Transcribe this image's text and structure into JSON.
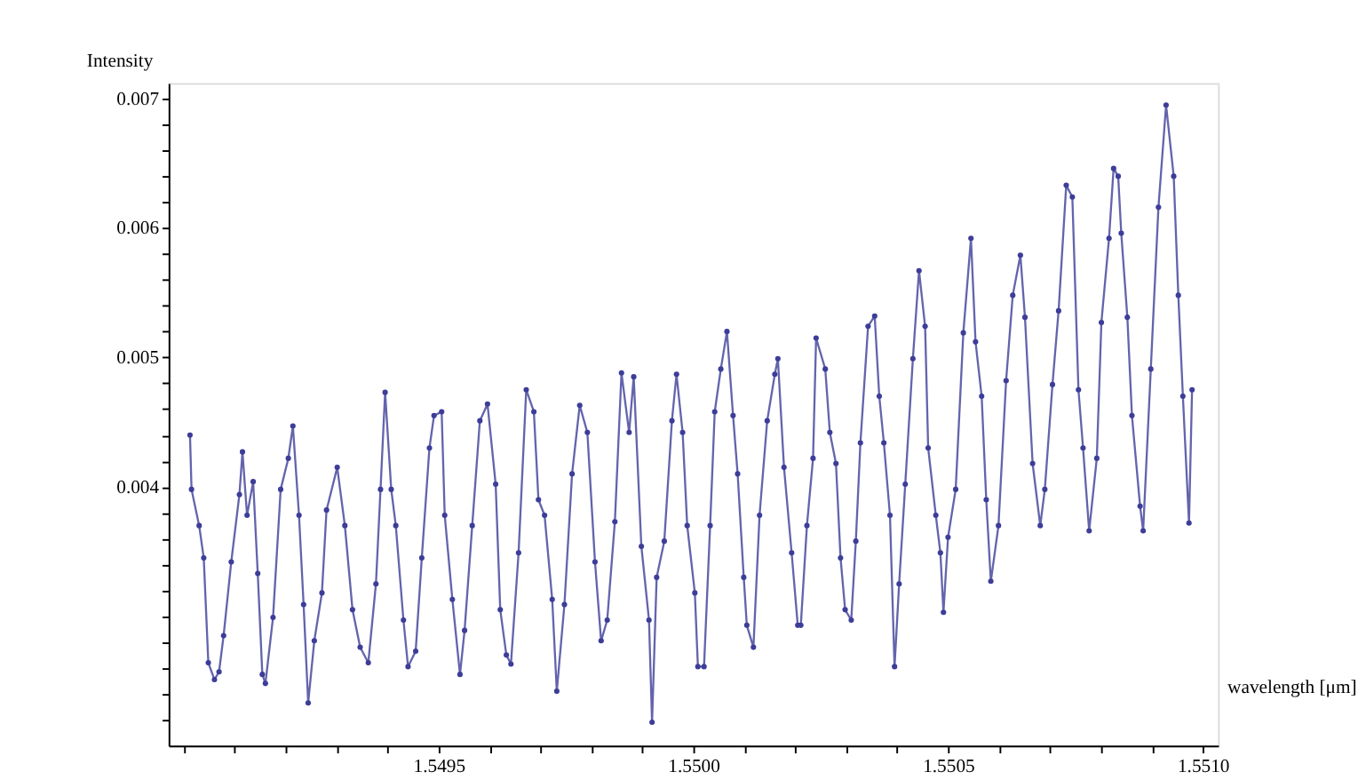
{
  "chart_data": {
    "type": "line",
    "xlabel": "wavelength [μm]",
    "ylabel": "Intensity",
    "xlim": [
      1.54897,
      1.55103
    ],
    "ylim": [
      0.002,
      0.00712
    ],
    "xticks": [
      {
        "value": 1.549,
        "label": null
      },
      {
        "value": 1.5491,
        "label": null
      },
      {
        "value": 1.5492,
        "label": null
      },
      {
        "value": 1.5493,
        "label": null
      },
      {
        "value": 1.5494,
        "label": null
      },
      {
        "value": 1.5495,
        "label": "1.5495"
      },
      {
        "value": 1.5496,
        "label": null
      },
      {
        "value": 1.5497,
        "label": null
      },
      {
        "value": 1.5498,
        "label": null
      },
      {
        "value": 1.5499,
        "label": null
      },
      {
        "value": 1.55,
        "label": "1.5500"
      },
      {
        "value": 1.5501,
        "label": null
      },
      {
        "value": 1.5502,
        "label": null
      },
      {
        "value": 1.5503,
        "label": null
      },
      {
        "value": 1.5504,
        "label": null
      },
      {
        "value": 1.5505,
        "label": "1.5505"
      },
      {
        "value": 1.5506,
        "label": null
      },
      {
        "value": 1.5507,
        "label": null
      },
      {
        "value": 1.5508,
        "label": null
      },
      {
        "value": 1.5509,
        "label": null
      },
      {
        "value": 1.551,
        "label": "1.5510"
      }
    ],
    "yticks": [
      {
        "value": 0.0022,
        "label": null
      },
      {
        "value": 0.0024,
        "label": null
      },
      {
        "value": 0.0026,
        "label": null
      },
      {
        "value": 0.0028,
        "label": null
      },
      {
        "value": 0.003,
        "label": null
      },
      {
        "value": 0.0032,
        "label": null
      },
      {
        "value": 0.0034,
        "label": null
      },
      {
        "value": 0.0036,
        "label": null
      },
      {
        "value": 0.0038,
        "label": null
      },
      0.004,
      {
        "value": 0.0042,
        "label": null
      },
      {
        "value": 0.0044,
        "label": null
      },
      {
        "value": 0.0046,
        "label": null
      },
      {
        "value": 0.0048,
        "label": null
      },
      0.005,
      {
        "value": 0.0052,
        "label": null
      },
      {
        "value": 0.0054,
        "label": null
      },
      {
        "value": 0.0056,
        "label": null
      },
      {
        "value": 0.0058,
        "label": null
      },
      0.006,
      {
        "value": 0.0062,
        "label": null
      },
      {
        "value": 0.0064,
        "label": null
      },
      {
        "value": 0.0066,
        "label": null
      },
      {
        "value": 0.0068,
        "label": null
      },
      0.007
    ],
    "grid": false,
    "marker": "circle",
    "line_style": "solid",
    "series": [
      {
        "color": "#3d3d99",
        "x": [
          1.549012,
          1.549015,
          1.54903,
          1.549039,
          1.549048,
          1.54906,
          1.549069,
          1.549078,
          1.549093,
          1.549109,
          1.549115,
          1.549124,
          1.549136,
          1.549145,
          1.549154,
          1.54916,
          1.549175,
          1.54919,
          1.549205,
          1.549214,
          1.549226,
          1.549235,
          1.549244,
          1.549256,
          1.549271,
          1.54928,
          1.549301,
          1.549316,
          1.549331,
          1.549346,
          1.549362,
          1.549377,
          1.549386,
          1.549395,
          1.549407,
          1.549416,
          1.549431,
          1.54944,
          1.549455,
          1.549467,
          1.549482,
          1.549491,
          1.549506,
          1.549512,
          1.549527,
          1.549542,
          1.549551,
          1.549566,
          1.549581,
          1.549596,
          1.549612,
          1.549621,
          1.549633,
          1.549642,
          1.549657,
          1.549672,
          1.549687,
          1.549696,
          1.549708,
          1.549723,
          1.549732,
          1.549747,
          1.549762,
          1.549777,
          1.549792,
          1.549807,
          1.549819,
          1.549831,
          1.549846,
          1.549859,
          1.549874,
          1.549883,
          1.549898,
          1.549913,
          1.549919,
          1.549928,
          1.549943,
          1.549958,
          1.549967,
          1.549979,
          1.549988,
          1.550003,
          1.550009,
          1.550021,
          1.550033,
          1.550042,
          1.550054,
          1.550066,
          1.550078,
          1.550087,
          1.550099,
          1.550105,
          1.550118,
          1.55013,
          1.550145,
          1.55016,
          1.550166,
          1.550178,
          1.550193,
          1.550205,
          1.550211,
          1.550223,
          1.550235,
          1.550241,
          1.550259,
          1.550268,
          1.55028,
          1.550289,
          1.550298,
          1.55031,
          1.550319,
          1.550328,
          1.550343,
          1.550356,
          1.550365,
          1.550374,
          1.550386,
          1.550395,
          1.550404,
          1.550416,
          1.550431,
          1.550443,
          1.550455,
          1.550461,
          1.550476,
          1.550485,
          1.550491,
          1.5505,
          1.550515,
          1.55053,
          1.550545,
          1.550554,
          1.550566,
          1.550575,
          1.550584,
          1.550599,
          1.550614,
          1.550627,
          1.550642,
          1.550651,
          1.550666,
          1.550681,
          1.55069,
          1.550705,
          1.550717,
          1.550732,
          1.550744,
          1.550756,
          1.550765,
          1.550777,
          1.550792,
          1.550801,
          1.550816,
          1.550825,
          1.550834,
          1.55084,
          1.550852,
          1.550861,
          1.550877,
          1.550883,
          1.550898,
          1.550913,
          1.550928,
          1.550943,
          1.550952,
          1.550961,
          1.550973,
          1.550979
        ],
        "values": [
          0.0044,
          0.00398,
          0.0037,
          0.00345,
          0.00264,
          0.00251,
          0.00257,
          0.00285,
          0.00342,
          0.00394,
          0.00427,
          0.00378,
          0.00404,
          0.00333,
          0.00255,
          0.00248,
          0.00299,
          0.00398,
          0.00422,
          0.00447,
          0.00378,
          0.00309,
          0.00233,
          0.00281,
          0.00318,
          0.00382,
          0.00415,
          0.0037,
          0.00305,
          0.00276,
          0.00264,
          0.00325,
          0.00398,
          0.00473,
          0.00398,
          0.0037,
          0.00297,
          0.00261,
          0.00273,
          0.00345,
          0.0043,
          0.00455,
          0.00458,
          0.00378,
          0.00313,
          0.00255,
          0.00289,
          0.0037,
          0.00451,
          0.00464,
          0.00402,
          0.00305,
          0.0027,
          0.00263,
          0.00349,
          0.00475,
          0.00458,
          0.0039,
          0.00378,
          0.00313,
          0.00242,
          0.00309,
          0.0041,
          0.00463,
          0.00442,
          0.00342,
          0.00281,
          0.00297,
          0.00373,
          0.00488,
          0.00442,
          0.00485,
          0.00354,
          0.00297,
          0.00218,
          0.0033,
          0.00358,
          0.00451,
          0.00487,
          0.00442,
          0.0037,
          0.00318,
          0.00261,
          0.00261,
          0.0037,
          0.00458,
          0.00491,
          0.0052,
          0.00455,
          0.0041,
          0.0033,
          0.00293,
          0.00276,
          0.00378,
          0.00451,
          0.00487,
          0.00499,
          0.00415,
          0.00349,
          0.00293,
          0.00293,
          0.0037,
          0.00422,
          0.00515,
          0.00491,
          0.00442,
          0.00418,
          0.00345,
          0.00305,
          0.00297,
          0.00358,
          0.00434,
          0.00524,
          0.00532,
          0.0047,
          0.00434,
          0.00378,
          0.00261,
          0.00325,
          0.00402,
          0.00499,
          0.00567,
          0.00524,
          0.0043,
          0.00378,
          0.00349,
          0.00303,
          0.00361,
          0.00398,
          0.00519,
          0.00592,
          0.00512,
          0.0047,
          0.0039,
          0.00327,
          0.0037,
          0.00482,
          0.00548,
          0.00579,
          0.00531,
          0.00418,
          0.0037,
          0.00398,
          0.00479,
          0.00536,
          0.00633,
          0.00624,
          0.00475,
          0.0043,
          0.00366,
          0.00422,
          0.00527,
          0.00592,
          0.00646,
          0.0064,
          0.00596,
          0.00531,
          0.00455,
          0.00385,
          0.00366,
          0.00491,
          0.00616,
          0.00695,
          0.0064,
          0.00548,
          0.0047,
          0.00372,
          0.00475
        ]
      }
    ]
  }
}
